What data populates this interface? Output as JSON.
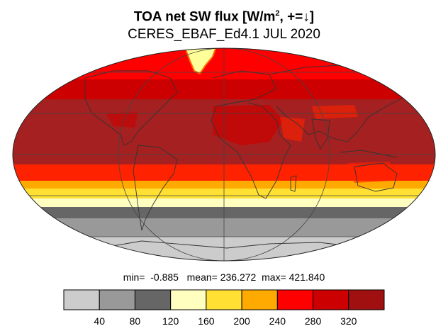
{
  "title": {
    "main": "TOA net SW flux [W/m",
    "sup": "2",
    "tail": ", +=↓]"
  },
  "subtitle": "CERES_EBAF_Ed4.1 JUL 2020",
  "stats": {
    "min_label": "min=",
    "min": "-0.885",
    "mean_label": "mean=",
    "mean": "236.272",
    "max_label": "max=",
    "max": "421.840"
  },
  "colorbar": {
    "colors": [
      "#cccccc",
      "#999999",
      "#666666",
      "#ffffc0",
      "#ffe033",
      "#ffaa00",
      "#ff0000",
      "#cc0000",
      "#a01010"
    ],
    "labels": [
      "40",
      "80",
      "120",
      "160",
      "200",
      "240",
      "280",
      "320"
    ]
  },
  "map": {
    "projection": "mollweide",
    "band_colors": {
      "polar_north": "#ff0000",
      "greenland_ice": "#ffff99",
      "tropics": "#a52020",
      "mid_south": "#ff2200",
      "south_40": "#ffaa00",
      "south_45": "#ffe033",
      "south_50": "#ffffc0",
      "south_60": "#666666",
      "south_65": "#999999",
      "antarctica": "#cccccc",
      "land_outline": "#333333",
      "graticule": "#444444"
    }
  }
}
